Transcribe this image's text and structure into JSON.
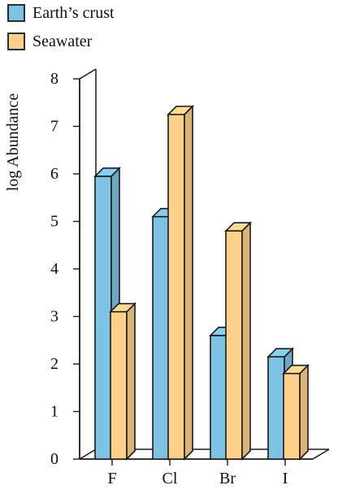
{
  "chart_data": {
    "type": "bar",
    "title": "",
    "xlabel": "",
    "ylabel": "log Abundance",
    "ylim": [
      0,
      8
    ],
    "yticks": [
      0,
      1,
      2,
      3,
      4,
      5,
      6,
      7,
      8
    ],
    "categories": [
      "F",
      "Cl",
      "Br",
      "I"
    ],
    "series": [
      {
        "name": "Earth’s crust",
        "color": "#7EC3E3",
        "values": [
          5.95,
          5.1,
          2.6,
          2.15
        ]
      },
      {
        "name": "Seawater",
        "color": "#FFD08A",
        "values": [
          3.1,
          7.25,
          4.8,
          1.8
        ]
      }
    ],
    "legend_position": "top-left",
    "grid": false,
    "style": "3d-bar"
  }
}
